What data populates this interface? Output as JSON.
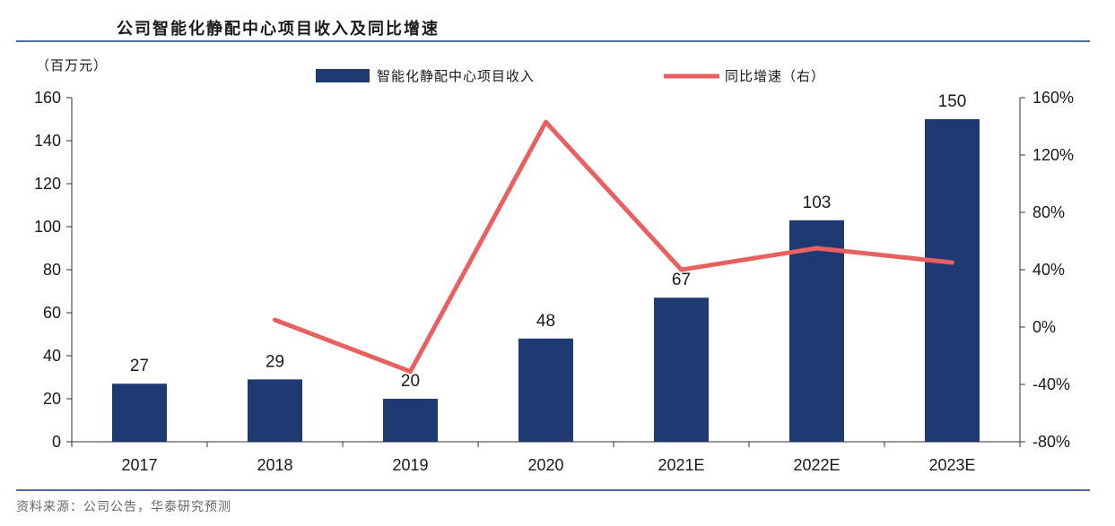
{
  "header": {
    "title": "公司智能化静配中心项目收入及同比增速"
  },
  "footer": {
    "source": "资料来源：公司公告，华泰研究预测"
  },
  "chart_data": {
    "type": "bar",
    "title": "公司智能化静配中心项目收入及同比增速",
    "categories": [
      "2017",
      "2018",
      "2019",
      "2020",
      "2021E",
      "2022E",
      "2023E"
    ],
    "y_left_unit": "（百万元）",
    "y_left": {
      "min": 0,
      "max": 160,
      "ticks": [
        "0",
        "20",
        "40",
        "60",
        "80",
        "100",
        "120",
        "140",
        "160"
      ]
    },
    "y_right": {
      "min": -80,
      "max": 160,
      "ticks": [
        "-80%",
        "-40%",
        "0%",
        "40%",
        "80%",
        "120%",
        "160%"
      ]
    },
    "series": [
      {
        "name": "智能化静配中心项目收入",
        "type": "bar",
        "axis": "left",
        "color": "#1f3a73",
        "values": [
          27,
          29,
          20,
          48,
          67,
          103,
          150
        ],
        "labels": [
          "27",
          "29",
          "20",
          "48",
          "67",
          "103",
          "150"
        ]
      },
      {
        "name": "同比增速（右）",
        "type": "line",
        "axis": "right",
        "color": "#e8605f",
        "values": [
          null,
          5,
          -31,
          143,
          40,
          55,
          45
        ]
      }
    ],
    "legend": "top-center",
    "grid": false
  }
}
